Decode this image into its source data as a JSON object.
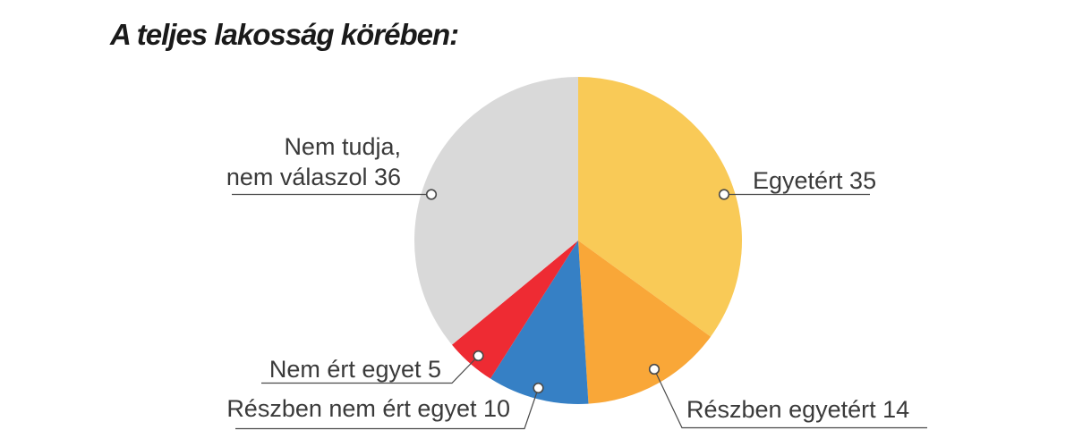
{
  "chart_data": {
    "type": "pie",
    "title": "A teljes lakosság körében:",
    "title_color": "#1a1a1a",
    "background": "#ffffff",
    "direction": "clockwise",
    "start_angle_deg": 0,
    "legend_position": "callout-labels",
    "label_text_color": "#3a3a3a",
    "leader_line_color": "#4a4a4a",
    "marker_fill": "#ffffff",
    "slices": [
      {
        "label": "Egyetért",
        "value": 35,
        "color": "#F9CA57",
        "display_lines": [
          "Egyetért 35"
        ]
      },
      {
        "label": "Részben egyetért",
        "value": 14,
        "color": "#F9A738",
        "display_lines": [
          "Részben egyetért 14"
        ]
      },
      {
        "label": "Részben nem ért egyet",
        "value": 10,
        "color": "#3680C5",
        "display_lines": [
          "Részben nem ért egyet 10"
        ]
      },
      {
        "label": "Nem ért egyet",
        "value": 5,
        "color": "#EE2B33",
        "display_lines": [
          "Nem ért egyet 5"
        ]
      },
      {
        "label": "Nem tudja, nem válaszol",
        "value": 36,
        "color": "#D9D9D9",
        "display_lines": [
          "Nem tudja,",
          "nem válaszol 36"
        ]
      }
    ]
  }
}
